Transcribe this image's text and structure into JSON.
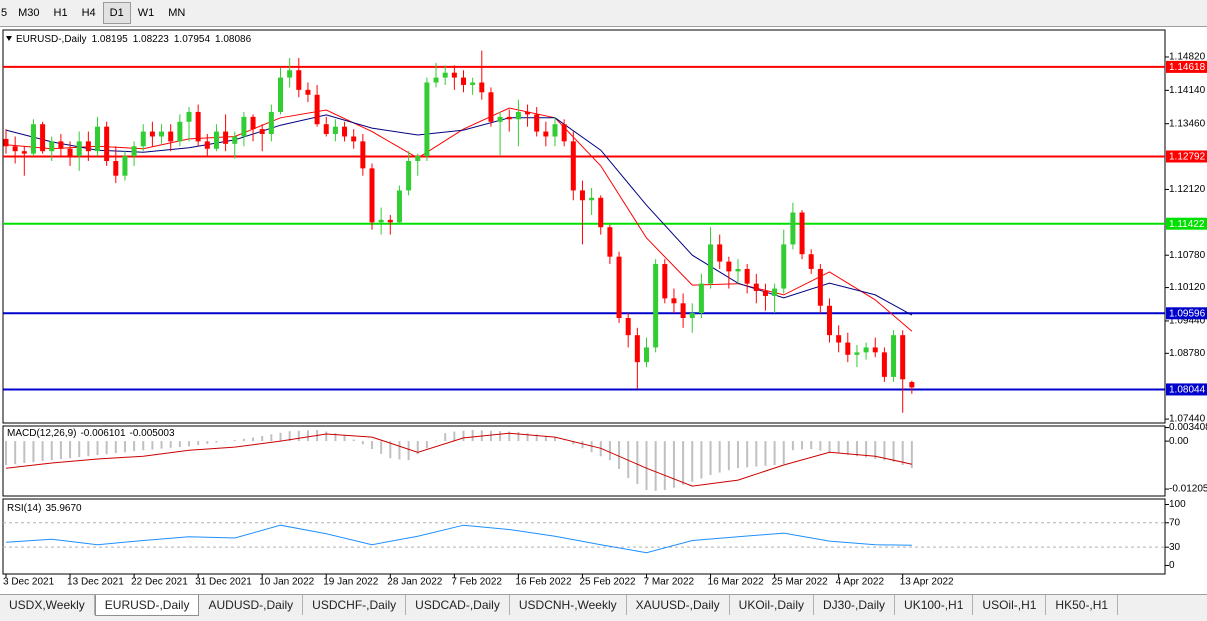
{
  "toolbar": [
    "5",
    "M30",
    "H1",
    "H4",
    "D1",
    "W1",
    "MN"
  ],
  "tabs": [
    "USDX,Weekly",
    "EURUSD-,Daily",
    "AUDUSD-,Daily",
    "USDCHF-,Daily",
    "USDCAD-,Daily",
    "USDCNH-,Weekly",
    "XAUUSD-,Daily",
    "UKOil-,Daily",
    "DJ30-,Daily",
    "UK100-,H1",
    "USOil-,H1",
    "HK50-,H1"
  ],
  "chart_data": [
    {
      "type": "candlestick",
      "symbol": "EURUSD-,Daily",
      "up_color": "#32cd32",
      "down_color": "#ff0000",
      "ylim": [
        1.0736,
        1.1537
      ],
      "yticks": [
        {
          "value": 1.1482,
          "label": "1.14820"
        },
        {
          "value": 1.1414,
          "label": "1.14140"
        },
        {
          "value": 1.1346,
          "label": "1.13460"
        },
        {
          "value": 1.1212,
          "label": "1.12120"
        },
        {
          "value": 1.1078,
          "label": "1.10780"
        },
        {
          "value": 1.1012,
          "label": "1.10120"
        },
        {
          "value": 1.0944,
          "label": "1.09440"
        },
        {
          "value": 1.0878,
          "label": "1.08780"
        },
        {
          "value": 1.0744,
          "label": "1.07440"
        }
      ],
      "categories": [
        "3 Dec 2021",
        null,
        null,
        null,
        null,
        null,
        null,
        "13 Dec 2021",
        null,
        null,
        null,
        null,
        null,
        null,
        "22 Dec 2021",
        null,
        null,
        null,
        null,
        null,
        null,
        "31 Dec 2021",
        null,
        null,
        null,
        null,
        null,
        null,
        "10 Jan 2022",
        null,
        null,
        null,
        null,
        null,
        null,
        "19 Jan 2022",
        null,
        null,
        null,
        null,
        null,
        null,
        "28 Jan 2022",
        null,
        null,
        null,
        null,
        null,
        null,
        "7 Feb 2022",
        null,
        null,
        null,
        null,
        null,
        null,
        "16 Feb 2022",
        null,
        null,
        null,
        null,
        null,
        null,
        "25 Feb 2022",
        null,
        null,
        null,
        null,
        null,
        null,
        "7 Mar 2022",
        null,
        null,
        null,
        null,
        null,
        null,
        "16 Mar 2022",
        null,
        null,
        null,
        null,
        null,
        null,
        "25 Mar 2022",
        null,
        null,
        null,
        null,
        null,
        null,
        "4 Apr 2022",
        null,
        null,
        null,
        null,
        null,
        null,
        "13 Apr 2022",
        null
      ],
      "ohlc": [
        [
          1.1315,
          1.1335,
          1.1285,
          1.13
        ],
        [
          1.13,
          1.132,
          1.1265,
          1.129
        ],
        [
          1.129,
          1.13,
          1.124,
          1.1285
        ],
        [
          1.1285,
          1.1355,
          1.128,
          1.1345
        ],
        [
          1.1345,
          1.135,
          1.1285,
          1.129
        ],
        [
          1.129,
          1.132,
          1.127,
          1.131
        ],
        [
          1.131,
          1.1325,
          1.128,
          1.1295
        ],
        [
          1.1295,
          1.131,
          1.126,
          1.128
        ],
        [
          1.128,
          1.133,
          1.125,
          1.131
        ],
        [
          1.131,
          1.133,
          1.127,
          1.129
        ],
        [
          1.129,
          1.136,
          1.128,
          1.134
        ],
        [
          1.134,
          1.135,
          1.126,
          1.127
        ],
        [
          1.127,
          1.13,
          1.1225,
          1.124
        ],
        [
          1.124,
          1.129,
          1.123,
          1.128
        ],
        [
          1.128,
          1.131,
          1.126,
          1.13
        ],
        [
          1.13,
          1.1345,
          1.129,
          1.133
        ],
        [
          1.133,
          1.135,
          1.13,
          1.132
        ],
        [
          1.132,
          1.1345,
          1.1305,
          1.133
        ],
        [
          1.133,
          1.1345,
          1.129,
          1.131
        ],
        [
          1.131,
          1.1365,
          1.13,
          1.135
        ],
        [
          1.135,
          1.138,
          1.131,
          1.137
        ],
        [
          1.137,
          1.1385,
          1.13,
          1.131
        ],
        [
          1.131,
          1.1325,
          1.128,
          1.1295
        ],
        [
          1.1295,
          1.1345,
          1.129,
          1.133
        ],
        [
          1.133,
          1.1365,
          1.129,
          1.1305
        ],
        [
          1.1305,
          1.133,
          1.1275,
          1.132
        ],
        [
          1.132,
          1.137,
          1.13,
          1.136
        ],
        [
          1.136,
          1.1365,
          1.131,
          1.1335
        ],
        [
          1.1335,
          1.1345,
          1.129,
          1.1325
        ],
        [
          1.1325,
          1.1385,
          1.131,
          1.137
        ],
        [
          1.137,
          1.146,
          1.1365,
          1.144
        ],
        [
          1.144,
          1.148,
          1.142,
          1.1455
        ],
        [
          1.1455,
          1.148,
          1.14,
          1.1415
        ],
        [
          1.1415,
          1.143,
          1.139,
          1.1405
        ],
        [
          1.1405,
          1.1425,
          1.134,
          1.1345
        ],
        [
          1.1345,
          1.136,
          1.132,
          1.1325
        ],
        [
          1.1325,
          1.1355,
          1.131,
          1.134
        ],
        [
          1.134,
          1.135,
          1.131,
          1.132
        ],
        [
          1.132,
          1.1335,
          1.1295,
          1.131
        ],
        [
          1.131,
          1.1325,
          1.124,
          1.1255
        ],
        [
          1.1255,
          1.1265,
          1.113,
          1.1145
        ],
        [
          1.1145,
          1.1175,
          1.112,
          1.115
        ],
        [
          1.115,
          1.116,
          1.112,
          1.1145
        ],
        [
          1.1145,
          1.122,
          1.114,
          1.121
        ],
        [
          1.121,
          1.129,
          1.12,
          1.127
        ],
        [
          1.127,
          1.1285,
          1.124,
          1.128
        ],
        [
          1.128,
          1.144,
          1.127,
          1.143
        ],
        [
          1.143,
          1.147,
          1.142,
          1.144
        ],
        [
          1.144,
          1.1465,
          1.1425,
          1.145
        ],
        [
          1.145,
          1.1465,
          1.1415,
          1.144
        ],
        [
          1.144,
          1.1455,
          1.141,
          1.1425
        ],
        [
          1.1425,
          1.144,
          1.1405,
          1.143
        ],
        [
          1.143,
          1.1495,
          1.1395,
          1.141
        ],
        [
          1.141,
          1.142,
          1.134,
          1.135
        ],
        [
          1.135,
          1.137,
          1.128,
          1.136
        ],
        [
          1.136,
          1.1375,
          1.133,
          1.1355
        ],
        [
          1.1355,
          1.1395,
          1.13,
          1.137
        ],
        [
          1.137,
          1.1385,
          1.134,
          1.1365
        ],
        [
          1.1365,
          1.138,
          1.132,
          1.133
        ],
        [
          1.133,
          1.135,
          1.13,
          1.132
        ],
        [
          1.132,
          1.136,
          1.13,
          1.1345
        ],
        [
          1.1345,
          1.1355,
          1.13,
          1.131
        ],
        [
          1.131,
          1.133,
          1.119,
          1.121
        ],
        [
          1.121,
          1.123,
          1.11,
          1.119
        ],
        [
          1.119,
          1.1215,
          1.116,
          1.1195
        ],
        [
          1.1195,
          1.12,
          1.112,
          1.1135
        ],
        [
          1.1135,
          1.114,
          1.106,
          1.1075
        ],
        [
          1.1075,
          1.1085,
          1.094,
          1.095
        ],
        [
          1.095,
          1.096,
          1.089,
          1.0915
        ],
        [
          1.0915,
          1.093,
          1.0805,
          1.086
        ],
        [
          1.086,
          1.091,
          1.085,
          1.089
        ],
        [
          1.089,
          1.107,
          1.088,
          1.106
        ],
        [
          1.106,
          1.107,
          1.098,
          1.099
        ],
        [
          1.099,
          1.101,
          1.096,
          1.098
        ],
        [
          1.098,
          1.1,
          1.093,
          1.095
        ],
        [
          1.095,
          1.098,
          1.092,
          1.096
        ],
        [
          1.096,
          1.104,
          1.095,
          1.102
        ],
        [
          1.102,
          1.1135,
          1.101,
          1.11
        ],
        [
          1.11,
          1.112,
          1.105,
          1.1065
        ],
        [
          1.1065,
          1.1075,
          1.101,
          1.1045
        ],
        [
          1.1045,
          1.107,
          1.102,
          1.105
        ],
        [
          1.105,
          1.106,
          1.1,
          1.102
        ],
        [
          1.102,
          1.104,
          1.098,
          1.1005
        ],
        [
          1.1005,
          1.102,
          1.0965,
          1.0995
        ],
        [
          1.0995,
          1.102,
          1.096,
          1.101
        ],
        [
          1.101,
          1.113,
          1.1,
          1.11
        ],
        [
          1.11,
          1.1185,
          1.109,
          1.1165
        ],
        [
          1.1165,
          1.117,
          1.107,
          1.108
        ],
        [
          1.108,
          1.109,
          1.104,
          1.105
        ],
        [
          1.105,
          1.106,
          1.096,
          1.0975
        ],
        [
          1.0975,
          1.099,
          1.09,
          1.0915
        ],
        [
          1.0915,
          1.0935,
          1.088,
          1.09
        ],
        [
          1.09,
          1.092,
          1.086,
          1.0875
        ],
        [
          1.0875,
          1.0895,
          1.085,
          1.088
        ],
        [
          1.088,
          1.09,
          1.0865,
          1.089
        ],
        [
          1.089,
          1.091,
          1.087,
          1.088
        ],
        [
          1.088,
          1.089,
          1.082,
          1.083
        ],
        [
          1.083,
          1.0925,
          1.082,
          1.0915
        ],
        [
          1.0915,
          1.0925,
          1.0757,
          1.0825
        ],
        [
          1.08195,
          1.08223,
          1.07954,
          1.08086
        ]
      ],
      "lines": [
        {
          "color": "#ff0000",
          "x": [
            0,
            5,
            10,
            15,
            20,
            25,
            30,
            35,
            40,
            45,
            50,
            55,
            60,
            65,
            70,
            75,
            80,
            85,
            90,
            95,
            99
          ],
          "values": [
            1.1303,
            1.1295,
            1.13,
            1.1295,
            1.1315,
            1.132,
            1.1358,
            1.1374,
            1.133,
            1.1276,
            1.1335,
            1.1378,
            1.1358,
            1.126,
            1.1113,
            1.1017,
            1.102,
            1.0997,
            1.1044,
            1.0987,
            1.0923
          ]
        },
        {
          "color": "#000080",
          "x": [
            0,
            5,
            10,
            15,
            20,
            25,
            30,
            35,
            40,
            45,
            50,
            55,
            60,
            65,
            70,
            75,
            80,
            85,
            90,
            95,
            99
          ],
          "values": [
            1.1333,
            1.1309,
            1.1292,
            1.1288,
            1.1297,
            1.1313,
            1.1343,
            1.1364,
            1.1337,
            1.1323,
            1.1333,
            1.1358,
            1.1358,
            1.1292,
            1.118,
            1.1078,
            1.1021,
            1.0991,
            1.1021,
            1.0997,
            1.0956
          ]
        }
      ],
      "levels": [
        {
          "value": 1.14618,
          "color": "#ff0000"
        },
        {
          "value": 1.12792,
          "color": "#ff0000"
        },
        {
          "value": 1.11422,
          "color": "#00e000"
        },
        {
          "value": 1.09596,
          "color": "#0000cc"
        },
        {
          "value": 1.08044,
          "color": "#0000cc"
        }
      ]
    },
    {
      "type": "macd",
      "name": "MACD(12,26,9)",
      "current": [
        -0.006101,
        -0.005003
      ],
      "hist_color": "#c0c0c0",
      "signal_color": "#cc0000",
      "ylim": [
        -0.0138,
        0.0038
      ],
      "yticks": [
        0.003408,
        {
          "value": 0,
          "label": "0.00"
        },
        -0.012058
      ],
      "histogram": [
        -0.006,
        -0.0058,
        -0.0055,
        -0.0053,
        -0.005,
        -0.0048,
        -0.0045,
        -0.0043,
        -0.004,
        -0.0038,
        -0.0035,
        -0.0033,
        -0.003,
        -0.0028,
        -0.0025,
        -0.0023,
        -0.0021,
        -0.0019,
        -0.0017,
        -0.0015,
        -0.0013,
        -0.001,
        -0.0007,
        -0.0004,
        0.0,
        0.0003,
        0.0006,
        0.0009,
        0.0013,
        0.0017,
        0.0021,
        0.0025,
        0.0026,
        0.0027,
        0.0028,
        0.0024,
        0.002,
        0.0015,
        0.0004,
        -0.0008,
        -0.002,
        -0.0032,
        -0.0043,
        -0.0046,
        -0.0048,
        -0.0033,
        -0.0018,
        0.0001,
        0.002,
        0.0024,
        0.0026,
        0.0028,
        0.0027,
        0.0026,
        0.0025,
        0.0024,
        0.0023,
        0.002,
        0.0017,
        0.0013,
        0.001,
        0.0001,
        -0.0008,
        -0.0018,
        -0.0028,
        -0.0038,
        -0.0048,
        -0.007,
        -0.0093,
        -0.0108,
        -0.0123,
        -0.0125,
        -0.0123,
        -0.0117,
        -0.011,
        -0.0102,
        -0.0094,
        -0.0085,
        -0.0079,
        -0.0073,
        -0.0068,
        -0.0066,
        -0.0064,
        -0.0062,
        -0.006,
        -0.0058,
        -0.0023,
        -0.0021,
        -0.002,
        -0.0024,
        -0.0028,
        -0.0031,
        -0.0035,
        -0.0038,
        -0.0041,
        -0.0045,
        -0.0048,
        -0.0052,
        -0.006,
        -0.0068
      ],
      "signal": {
        "x": [
          0,
          5,
          10,
          15,
          20,
          25,
          30,
          35,
          40,
          45,
          50,
          55,
          60,
          65,
          70,
          75,
          80,
          85,
          90,
          95,
          99
        ],
        "values": [
          -0.0068,
          -0.0055,
          -0.0045,
          -0.0038,
          -0.0023,
          -0.0015,
          0.0,
          0.0018,
          0.001,
          -0.0028,
          0.0008,
          0.002,
          0.001,
          -0.0018,
          -0.0068,
          -0.0113,
          -0.0098,
          -0.006,
          -0.0028,
          -0.0038,
          -0.0058
        ]
      }
    },
    {
      "type": "rsi",
      "name": "RSI(14)",
      "current": {
        "value": 35.967,
        "label": "35.9670"
      },
      "color": "#1e90ff",
      "ylim": [
        -14,
        109
      ],
      "yticks": [
        100,
        70,
        30,
        0
      ],
      "levels": [
        70,
        30
      ],
      "x": [
        0,
        5,
        10,
        15,
        20,
        25,
        30,
        35,
        40,
        45,
        50,
        55,
        60,
        65,
        70,
        75,
        80,
        85,
        90,
        95,
        99
      ],
      "values": [
        38,
        43,
        34,
        41,
        47,
        45,
        66,
        52,
        34,
        48,
        66,
        59,
        48,
        34,
        21,
        41,
        47,
        53,
        40,
        34,
        33
      ]
    }
  ]
}
